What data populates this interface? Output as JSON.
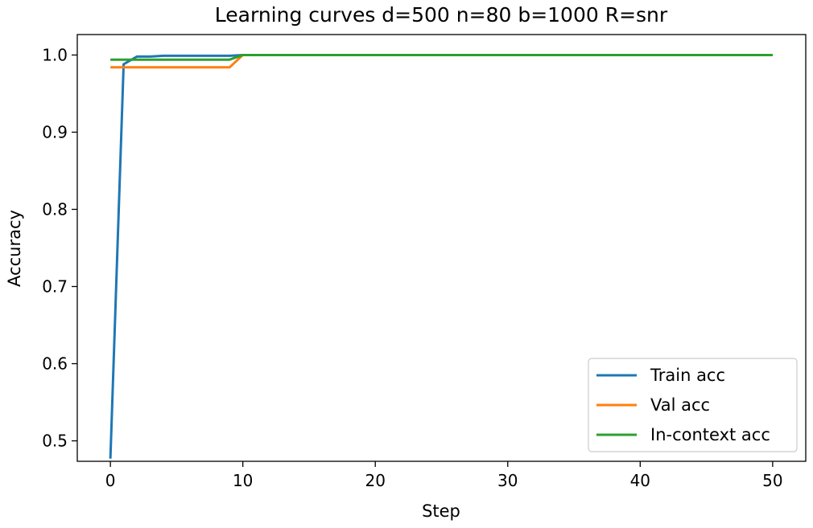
{
  "chart_data": {
    "type": "line",
    "title": "Learning curves d=500 n=80 b=1000 R=snr",
    "xlabel": "Step",
    "ylabel": "Accuracy",
    "xlim": [
      -2.5,
      52.5
    ],
    "ylim": [
      0.4735,
      1.0265
    ],
    "xticks": [
      0,
      10,
      20,
      30,
      40,
      50
    ],
    "yticks": [
      0.5,
      0.6,
      0.7,
      0.8,
      0.9,
      1.0
    ],
    "xtick_labels": [
      "0",
      "10",
      "20",
      "30",
      "40",
      "50"
    ],
    "ytick_labels": [
      "0.5",
      "0.6",
      "0.7",
      "0.8",
      "0.9",
      "1.0"
    ],
    "grid": false,
    "legend_position": "lower right",
    "series": [
      {
        "name": "Train acc",
        "color": "#1f77b4",
        "x": [
          0,
          1,
          2,
          3,
          4,
          5,
          6,
          7,
          8,
          9,
          10,
          11,
          12,
          13,
          14,
          15,
          16,
          17,
          18,
          19,
          20,
          21,
          22,
          23,
          24,
          25,
          26,
          27,
          28,
          29,
          30,
          31,
          32,
          33,
          34,
          35,
          36,
          37,
          38,
          39,
          40,
          41,
          42,
          43,
          44,
          45,
          46,
          47,
          48,
          49,
          50
        ],
        "y": [
          0.477,
          0.988,
          0.998,
          0.998,
          0.999,
          0.999,
          0.999,
          0.999,
          0.999,
          0.999,
          1.0,
          1.0,
          1.0,
          1.0,
          1.0,
          1.0,
          1.0,
          1.0,
          1.0,
          1.0,
          1.0,
          1.0,
          1.0,
          1.0,
          1.0,
          1.0,
          1.0,
          1.0,
          1.0,
          1.0,
          1.0,
          1.0,
          1.0,
          1.0,
          1.0,
          1.0,
          1.0,
          1.0,
          1.0,
          1.0,
          1.0,
          1.0,
          1.0,
          1.0,
          1.0,
          1.0,
          1.0,
          1.0,
          1.0,
          1.0,
          1.0
        ]
      },
      {
        "name": "Val acc",
        "color": "#ff7f0e",
        "x": [
          0,
          1,
          2,
          3,
          4,
          5,
          6,
          7,
          8,
          9,
          10,
          11,
          12,
          13,
          14,
          15,
          16,
          17,
          18,
          19,
          20,
          21,
          22,
          23,
          24,
          25,
          26,
          27,
          28,
          29,
          30,
          31,
          32,
          33,
          34,
          35,
          36,
          37,
          38,
          39,
          40,
          41,
          42,
          43,
          44,
          45,
          46,
          47,
          48,
          49,
          50
        ],
        "y": [
          0.984,
          0.984,
          0.984,
          0.984,
          0.984,
          0.984,
          0.984,
          0.984,
          0.984,
          0.984,
          1.0,
          1.0,
          1.0,
          1.0,
          1.0,
          1.0,
          1.0,
          1.0,
          1.0,
          1.0,
          1.0,
          1.0,
          1.0,
          1.0,
          1.0,
          1.0,
          1.0,
          1.0,
          1.0,
          1.0,
          1.0,
          1.0,
          1.0,
          1.0,
          1.0,
          1.0,
          1.0,
          1.0,
          1.0,
          1.0,
          1.0,
          1.0,
          1.0,
          1.0,
          1.0,
          1.0,
          1.0,
          1.0,
          1.0,
          1.0,
          1.0
        ]
      },
      {
        "name": "In-context acc",
        "color": "#2ca02c",
        "x": [
          0,
          1,
          2,
          3,
          4,
          5,
          6,
          7,
          8,
          9,
          10,
          11,
          12,
          13,
          14,
          15,
          16,
          17,
          18,
          19,
          20,
          21,
          22,
          23,
          24,
          25,
          26,
          27,
          28,
          29,
          30,
          31,
          32,
          33,
          34,
          35,
          36,
          37,
          38,
          39,
          40,
          41,
          42,
          43,
          44,
          45,
          46,
          47,
          48,
          49,
          50
        ],
        "y": [
          0.994,
          0.994,
          0.994,
          0.994,
          0.994,
          0.994,
          0.994,
          0.994,
          0.994,
          0.994,
          1.0,
          1.0,
          1.0,
          1.0,
          1.0,
          1.0,
          1.0,
          1.0,
          1.0,
          1.0,
          1.0,
          1.0,
          1.0,
          1.0,
          1.0,
          1.0,
          1.0,
          1.0,
          1.0,
          1.0,
          1.0,
          1.0,
          1.0,
          1.0,
          1.0,
          1.0,
          1.0,
          1.0,
          1.0,
          1.0,
          1.0,
          1.0,
          1.0,
          1.0,
          1.0,
          1.0,
          1.0,
          1.0,
          1.0,
          1.0,
          1.0
        ]
      }
    ]
  }
}
